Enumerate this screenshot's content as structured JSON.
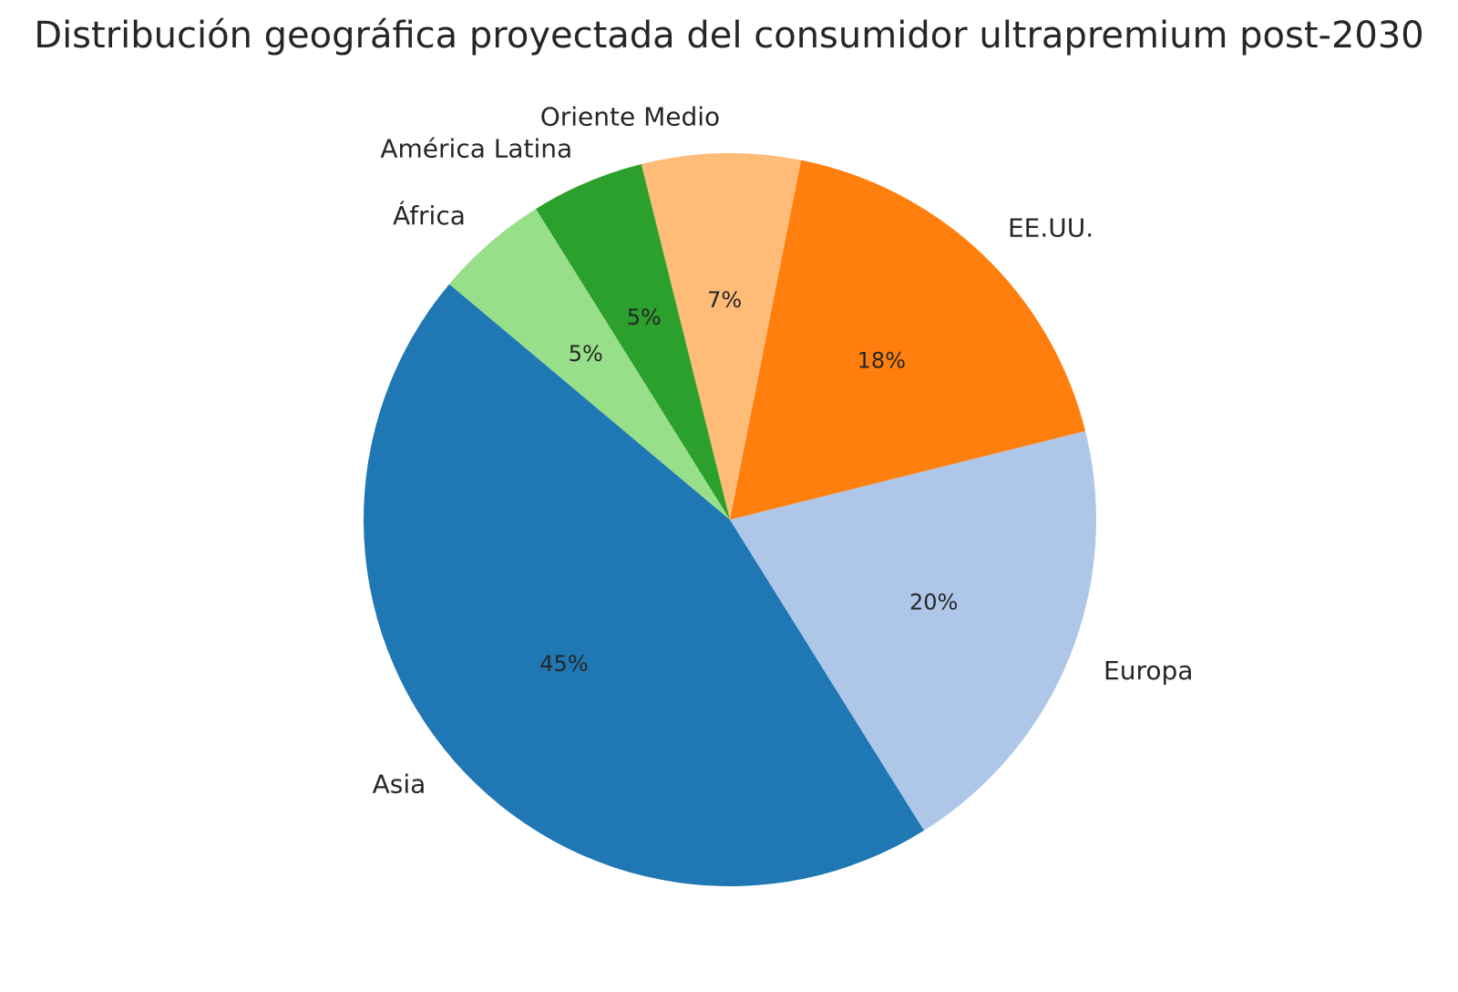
{
  "chart_data": {
    "type": "pie",
    "title": "Distribución geográfica proyectada del consumidor ultrapremium post-2030",
    "slices": [
      {
        "label": "Asia",
        "value": 45,
        "value_label": "45%",
        "color": "#1f77b4"
      },
      {
        "label": "Europa",
        "value": 20,
        "value_label": "20%",
        "color": "#aec7e8"
      },
      {
        "label": "EE.UU.",
        "value": 18,
        "value_label": "18%",
        "color": "#ff7f0e"
      },
      {
        "label": "Oriente Medio",
        "value": 7,
        "value_label": "7%",
        "color": "#ffbb78"
      },
      {
        "label": "América Latina",
        "value": 5,
        "value_label": "5%",
        "color": "#2ca02c"
      },
      {
        "label": "África",
        "value": 5,
        "value_label": "5%",
        "color": "#98df8a"
      }
    ],
    "start_angle_deg": 140,
    "direction": "counterclockwise"
  }
}
